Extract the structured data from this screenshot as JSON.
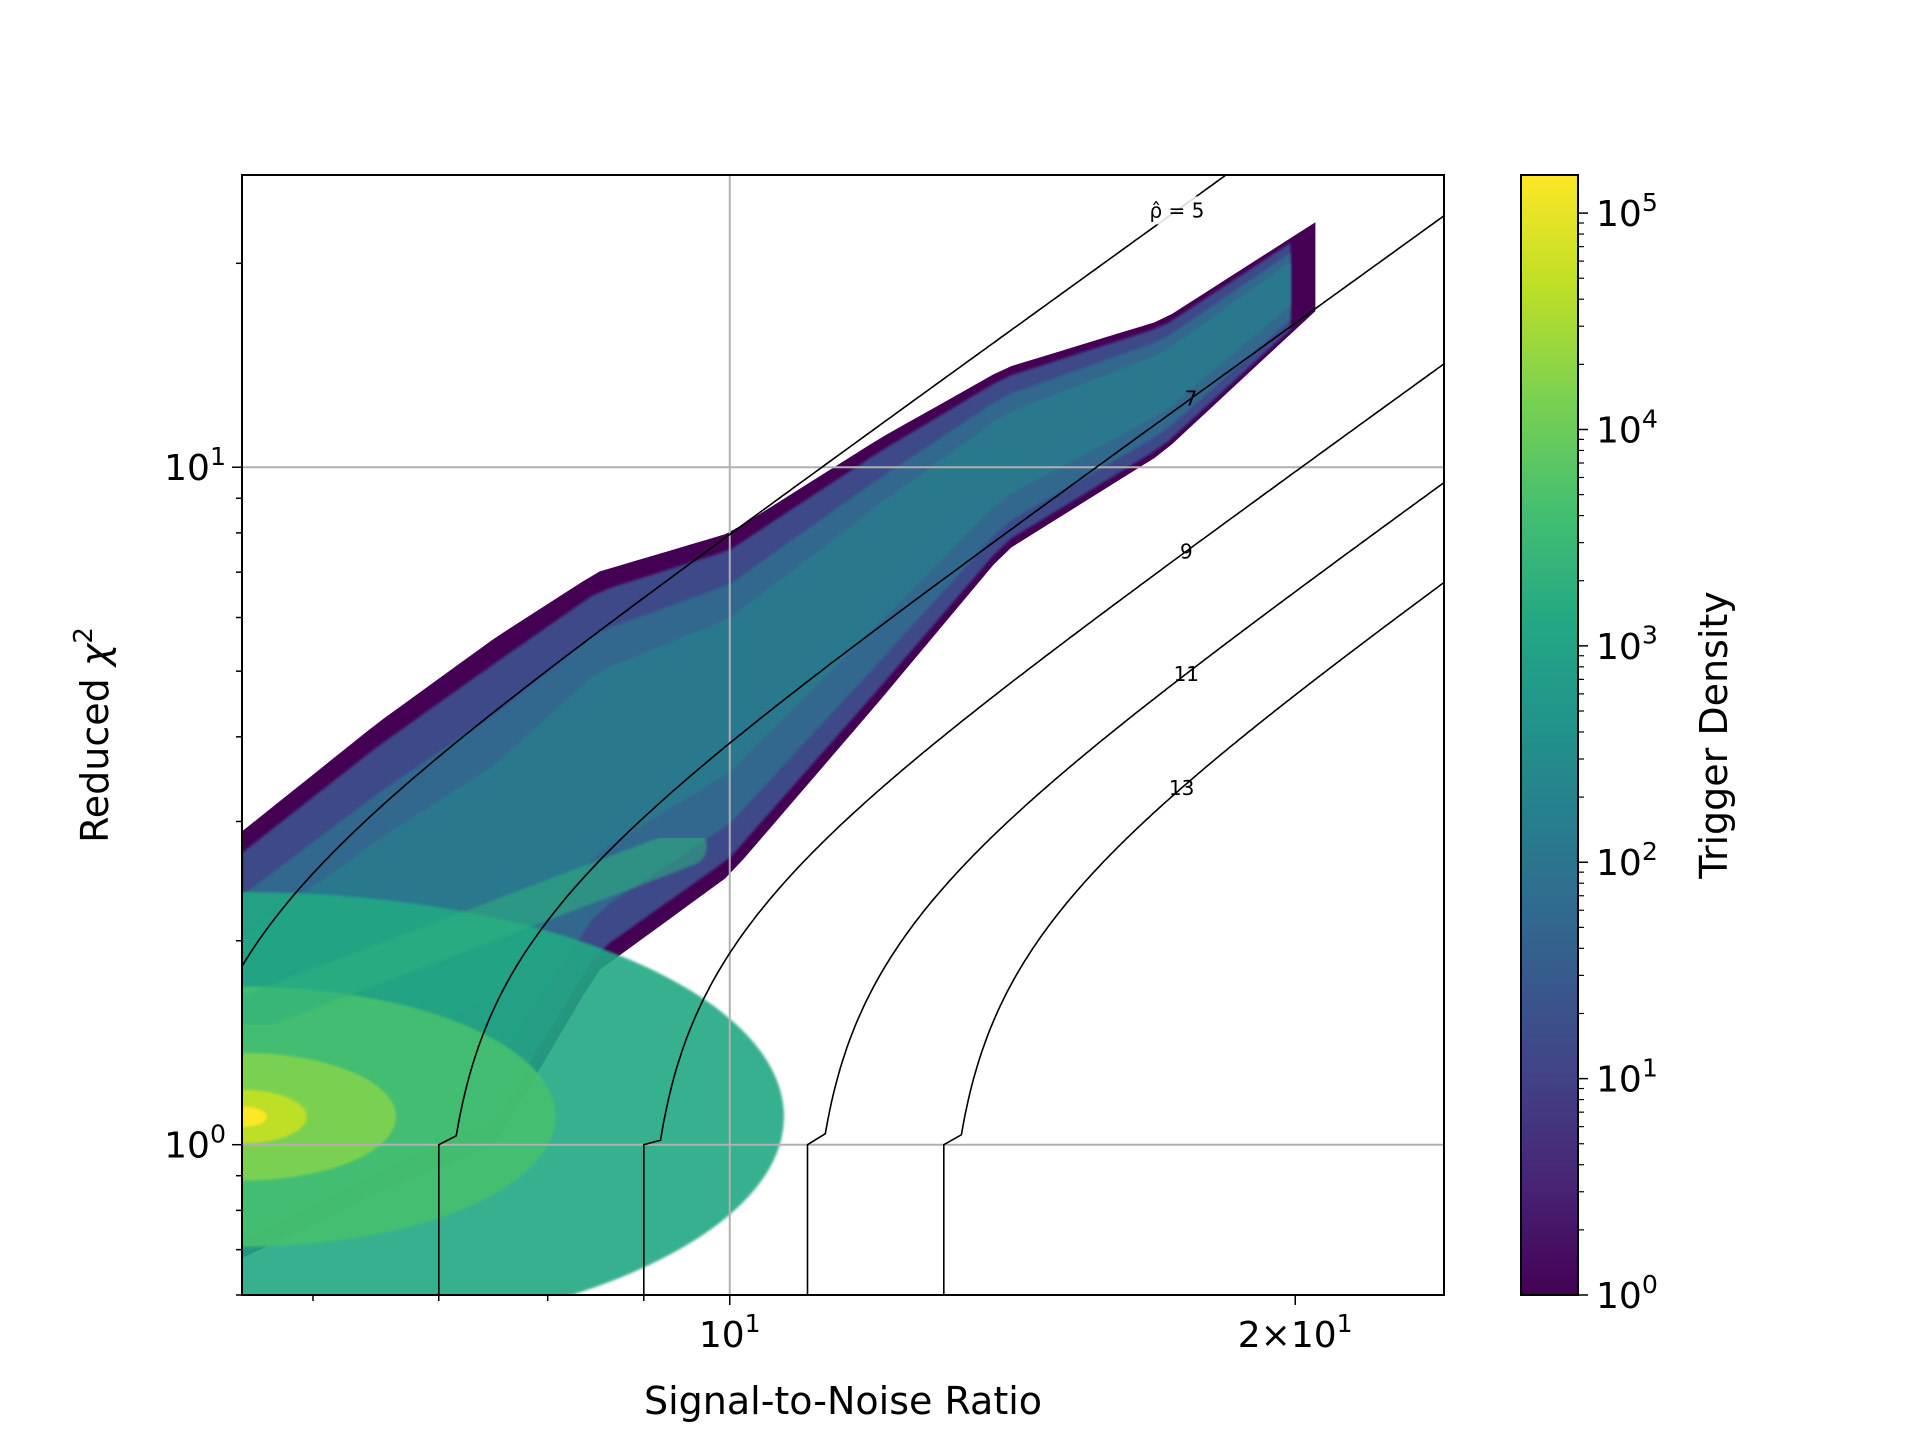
{
  "chart_data": {
    "type": "heatmap",
    "title": "",
    "xlabel": "Signal-to-Noise Ratio",
    "ylabel_prefix": "Reduced ",
    "ylabel_symbol": "χ",
    "ylabel_sup": "2",
    "xscale": "log",
    "yscale": "log",
    "xlim": [
      5.5,
      24
    ],
    "ylim": [
      0.6,
      27
    ],
    "grid": true,
    "x_ticks": [
      {
        "value": 10,
        "base": "10",
        "exp": "1",
        "prefix": ""
      },
      {
        "value": 20,
        "base": "10",
        "exp": "1",
        "prefix": "2×"
      }
    ],
    "y_ticks": [
      {
        "value": 1,
        "base": "10",
        "exp": "0"
      },
      {
        "value": 10,
        "base": "10",
        "exp": "1"
      }
    ],
    "colorbar": {
      "label": "Trigger Density",
      "scale": "log",
      "range": [
        1,
        150000
      ],
      "colormap": "viridis",
      "ticks": [
        {
          "value": 1,
          "base": "10",
          "exp": "0"
        },
        {
          "value": 10,
          "base": "10",
          "exp": "1"
        },
        {
          "value": 100,
          "base": "10",
          "exp": "2"
        },
        {
          "value": 1000,
          "base": "10",
          "exp": "3"
        },
        {
          "value": 10000,
          "base": "10",
          "exp": "4"
        },
        {
          "value": 100000,
          "base": "10",
          "exp": "5"
        }
      ]
    },
    "contours": [
      {
        "label": "ρ̂ = 5",
        "value": 5,
        "label_snr": 17.3
      },
      {
        "label": "7",
        "value": 7,
        "label_snr": 17.6
      },
      {
        "label": "9",
        "value": 9,
        "label_snr": 17.5
      },
      {
        "label": "11",
        "value": 11,
        "label_snr": 17.5
      },
      {
        "label": "13",
        "value": 13,
        "label_snr": 17.4
      }
    ],
    "contour_formula": "newsnr: chi2 = 2*(((snr/rho)^6 - 1))^(1/3)",
    "density_ridge": [
      {
        "snr": 5.5,
        "chi2_low": 0.68,
        "chi2_high": 2.9
      },
      {
        "snr": 6.5,
        "chi2_low": 0.85,
        "chi2_high": 4.2
      },
      {
        "snr": 7.5,
        "chi2_low": 1.0,
        "chi2_high": 5.6
      },
      {
        "snr": 8.5,
        "chi2_low": 1.8,
        "chi2_high": 7.0
      },
      {
        "snr": 10,
        "chi2_low": 2.5,
        "chi2_high": 8.0
      },
      {
        "snr": 12,
        "chi2_low": 4.5,
        "chi2_high": 11.0
      },
      {
        "snr": 14,
        "chi2_low": 7.5,
        "chi2_high": 14.0
      },
      {
        "snr": 17,
        "chi2_low": 10.5,
        "chi2_high": 16.5
      },
      {
        "snr": 20.5,
        "chi2_low": 17.0,
        "chi2_high": 23.0
      }
    ],
    "peak_density": {
      "snr": 5.5,
      "chi2": 1.1,
      "value": 150000
    }
  }
}
